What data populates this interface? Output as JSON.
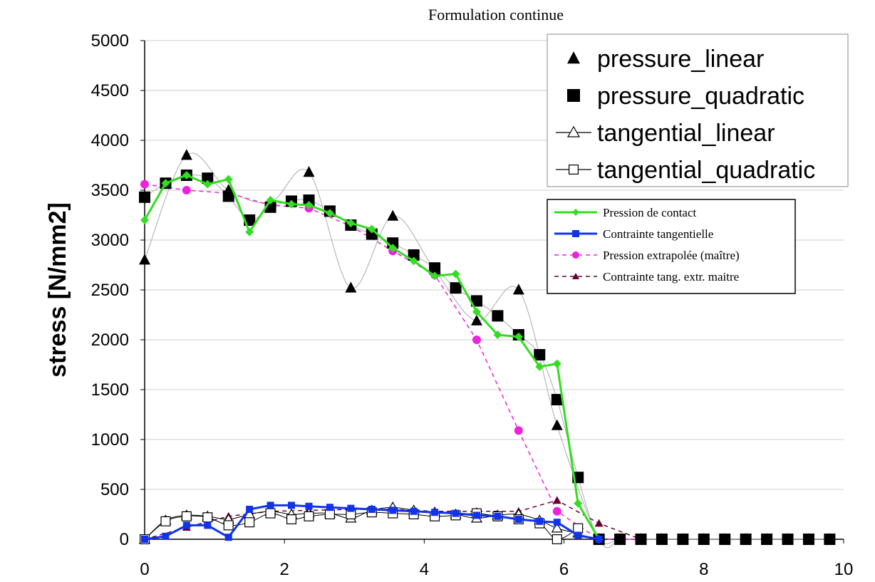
{
  "chart_data": {
    "type": "line",
    "title": "Formulation continue",
    "xlabel": "",
    "ylabel": "stress [N/mm2]",
    "xlim": [
      0,
      10
    ],
    "ylim": [
      0,
      5000
    ],
    "x_ticks": [
      "0",
      "2",
      "4",
      "6",
      "8",
      "10"
    ],
    "y_ticks": [
      "0",
      "500",
      "1000",
      "1500",
      "2000",
      "2500",
      "3000",
      "3500",
      "4000",
      "4500",
      "5000"
    ],
    "grid": "horizontal",
    "legend_top_right": {
      "placement": "top-right",
      "entries": [
        "pressure_linear",
        "pressure_quadratic",
        "tangential_linear",
        "tangential_quadratic"
      ]
    },
    "legend_inner": {
      "placement": "right",
      "entries": [
        "Pression de contact",
        "Contrainte tangentielle",
        "Pression extrapolée (maître)",
        "Contrainte tang. extr. maitre"
      ]
    },
    "series": [
      {
        "name": "pressure_linear",
        "style": "points",
        "marker": "triangle-filled",
        "color": "#000000",
        "x": [
          0,
          0.6,
          1.2,
          1.8,
          2.35,
          2.95,
          3.55,
          4.15,
          4.75,
          5.35,
          5.9,
          6.5,
          6.8,
          7.1,
          7.4,
          7.7,
          8.0,
          8.3,
          8.6,
          8.9,
          9.2,
          9.5,
          9.8
        ],
        "y": [
          2800,
          3850,
          3500,
          3380,
          3680,
          2520,
          3240,
          2700,
          2190,
          2500,
          1140,
          0,
          0,
          0,
          0,
          0,
          0,
          0,
          0,
          0,
          0,
          0,
          0
        ]
      },
      {
        "name": "pressure_quadratic",
        "style": "points",
        "marker": "square-filled",
        "color": "#000000",
        "x": [
          0,
          0.3,
          0.6,
          0.9,
          1.2,
          1.5,
          1.8,
          2.1,
          2.35,
          2.65,
          2.95,
          3.25,
          3.55,
          3.85,
          4.15,
          4.45,
          4.75,
          5.05,
          5.35,
          5.65,
          5.9,
          6.2,
          6.5,
          6.8,
          7.1,
          7.4,
          7.7,
          8.0,
          8.3,
          8.6,
          8.9,
          9.2,
          9.5,
          9.8
        ],
        "y": [
          3430,
          3570,
          3650,
          3620,
          3440,
          3200,
          3330,
          3390,
          3400,
          3290,
          3150,
          3060,
          2970,
          2850,
          2720,
          2520,
          2390,
          2240,
          2050,
          1850,
          1400,
          620,
          0,
          0,
          0,
          0,
          0,
          0,
          0,
          0,
          0,
          0,
          0,
          0
        ]
      },
      {
        "name": "tangential_linear",
        "style": "line-hollow-triangle",
        "color": "#000000",
        "x": [
          0,
          0.3,
          0.6,
          0.9,
          1.2,
          1.5,
          1.8,
          2.1,
          2.35,
          2.65,
          2.95,
          3.25,
          3.55,
          3.85,
          4.15,
          4.45,
          4.75,
          5.05,
          5.35,
          5.65,
          5.9,
          6.2
        ],
        "y": [
          0,
          190,
          240,
          230,
          200,
          250,
          280,
          250,
          260,
          260,
          210,
          290,
          320,
          290,
          270,
          250,
          210,
          240,
          250,
          190,
          110,
          60
        ]
      },
      {
        "name": "tangential_quadratic",
        "style": "line-hollow-square",
        "color": "#000000",
        "x": [
          0,
          0.3,
          0.6,
          0.9,
          1.2,
          1.5,
          1.8,
          2.1,
          2.35,
          2.65,
          2.95,
          3.25,
          3.55,
          3.85,
          4.15,
          4.45,
          4.75,
          5.05,
          5.35,
          5.65,
          5.9,
          6.2
        ],
        "y": [
          0,
          180,
          230,
          220,
          140,
          170,
          260,
          200,
          230,
          250,
          250,
          270,
          260,
          250,
          230,
          240,
          260,
          230,
          200,
          160,
          0,
          110
        ]
      },
      {
        "name": "Pression de contact",
        "style": "solid-diamond",
        "color": "#33dd22",
        "x": [
          0,
          0.3,
          0.6,
          0.9,
          1.2,
          1.5,
          1.8,
          2.1,
          2.35,
          2.65,
          2.95,
          3.25,
          3.55,
          3.85,
          4.15,
          4.45,
          4.75,
          5.05,
          5.35,
          5.65,
          5.9,
          6.2,
          6.5
        ],
        "y": [
          3200,
          3570,
          3650,
          3560,
          3610,
          3080,
          3400,
          3360,
          3350,
          3270,
          3170,
          3110,
          2920,
          2790,
          2640,
          2660,
          2280,
          2050,
          2030,
          1730,
          1760,
          360,
          0
        ]
      },
      {
        "name": "Contrainte tangentielle",
        "style": "solid-square",
        "color": "#1133ee",
        "x": [
          0,
          0.3,
          0.6,
          0.9,
          1.2,
          1.5,
          1.8,
          2.1,
          2.35,
          2.65,
          2.95,
          3.25,
          3.55,
          3.85,
          4.15,
          4.45,
          4.75,
          5.05,
          5.35,
          5.65,
          5.9,
          6.2,
          6.5
        ],
        "y": [
          0,
          30,
          140,
          140,
          20,
          300,
          340,
          340,
          330,
          320,
          310,
          300,
          290,
          280,
          270,
          260,
          240,
          230,
          200,
          180,
          170,
          40,
          0
        ]
      },
      {
        "name": "Pression extrapolée (maître)",
        "style": "dashed-circle",
        "color": "#ee22dd",
        "x": [
          0,
          0.6,
          1.2,
          1.8,
          2.35,
          2.95,
          3.55,
          4.15,
          4.75,
          5.35,
          5.9,
          6.5,
          7.1
        ],
        "y": [
          3560,
          3500,
          3470,
          3350,
          3320,
          3140,
          2890,
          2650,
          2000,
          1090,
          280,
          0,
          0
        ]
      },
      {
        "name": "Contrainte tang. extr. maitre",
        "style": "dashed-triangle",
        "color": "#660033",
        "x": [
          0,
          0.6,
          1.2,
          1.8,
          2.35,
          2.95,
          3.55,
          4.15,
          4.75,
          5.35,
          5.9,
          6.5,
          7.1
        ],
        "y": [
          0,
          120,
          230,
          280,
          290,
          300,
          300,
          280,
          280,
          280,
          390,
          160,
          0
        ]
      }
    ]
  }
}
